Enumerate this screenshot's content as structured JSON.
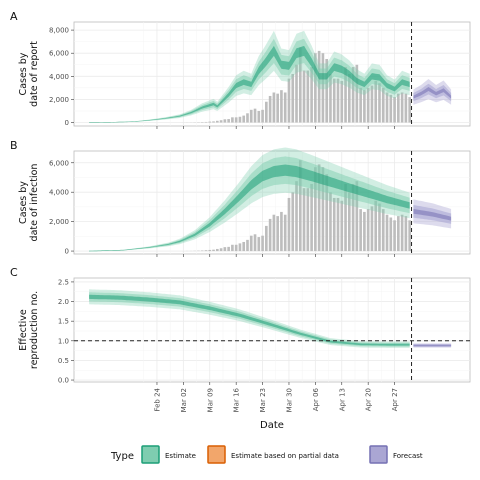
{
  "figure": {
    "xlabel": "Date",
    "legend_title": "Type",
    "legend_position": "bottom"
  },
  "colors": {
    "estimate": "#1b9e77",
    "estimate_fill": "#7fcdb0",
    "partial": "#d95f02",
    "partial_fill": "#f2a66b",
    "forecast": "#7570b3",
    "forecast_fill": "#aaa6d3",
    "bar": "#bdbdbd",
    "grid": "#ebebeb"
  },
  "chart_data": [
    {
      "id": "A",
      "panel_label": "A",
      "type": "bar",
      "ylabel_lines": [
        "Cases by",
        "date of report"
      ],
      "ylim": [
        -300,
        8700
      ],
      "yticks": [
        0,
        2000,
        4000,
        6000,
        8000
      ],
      "ytick_labels": [
        "0",
        "2,000",
        "4,000",
        "6,000",
        "8,000"
      ],
      "bars": [
        4,
        8,
        10,
        18,
        25,
        40,
        50,
        80,
        100,
        150,
        200,
        280,
        300,
        450,
        450,
        500,
        600,
        800,
        1100,
        1200,
        1000,
        1100,
        1800,
        2300,
        2600,
        2500,
        2800,
        2600,
        3800,
        4200,
        5000,
        6500,
        4500,
        4500,
        4800,
        6000,
        6200,
        6000,
        5500,
        4200,
        3800,
        3800,
        3600,
        4800,
        4200,
        4800,
        5000,
        3000,
        2800,
        3000,
        3200,
        3600,
        3400,
        3000,
        2600,
        2400,
        2200,
        2500,
        2600,
        2500,
        2200
      ],
      "estimate_center": [
        {
          "d": -24,
          "v": 0
        },
        {
          "d": -18,
          "v": 20
        },
        {
          "d": -12,
          "v": 80
        },
        {
          "d": -8,
          "v": 200
        },
        {
          "d": -4,
          "v": 350
        },
        {
          "d": 0,
          "v": 550
        },
        {
          "d": 3,
          "v": 850
        },
        {
          "d": 6,
          "v": 1300
        },
        {
          "d": 9,
          "v": 1600
        },
        {
          "d": 10,
          "v": 1400
        },
        {
          "d": 13,
          "v": 2400
        },
        {
          "d": 15,
          "v": 3200
        },
        {
          "d": 17,
          "v": 3500
        },
        {
          "d": 19,
          "v": 3300
        },
        {
          "d": 21,
          "v": 4500
        },
        {
          "d": 23,
          "v": 5300
        },
        {
          "d": 25,
          "v": 6200
        },
        {
          "d": 27,
          "v": 5000
        },
        {
          "d": 29,
          "v": 4900
        },
        {
          "d": 31,
          "v": 6000
        },
        {
          "d": 33,
          "v": 6200
        },
        {
          "d": 35,
          "v": 5200
        },
        {
          "d": 37,
          "v": 4000
        },
        {
          "d": 39,
          "v": 4000
        },
        {
          "d": 41,
          "v": 4800
        },
        {
          "d": 43,
          "v": 4600
        },
        {
          "d": 45,
          "v": 4200
        },
        {
          "d": 47,
          "v": 3600
        },
        {
          "d": 49,
          "v": 3300
        },
        {
          "d": 51,
          "v": 4000
        },
        {
          "d": 53,
          "v": 3900
        },
        {
          "d": 55,
          "v": 3200
        },
        {
          "d": 57,
          "v": 2900
        },
        {
          "d": 59,
          "v": 3500
        },
        {
          "d": 61,
          "v": 3300
        }
      ],
      "forecast_center": [
        {
          "d": 62,
          "v": 2200
        },
        {
          "d": 64,
          "v": 2500
        },
        {
          "d": 66,
          "v": 2900
        },
        {
          "d": 68,
          "v": 2500
        },
        {
          "d": 70,
          "v": 2800
        },
        {
          "d": 72,
          "v": 2200
        }
      ]
    },
    {
      "id": "B",
      "panel_label": "B",
      "type": "bar",
      "ylabel_lines": [
        "Cases by",
        "date of infection"
      ],
      "ylim": [
        -200,
        6800
      ],
      "yticks": [
        0,
        2000,
        4000,
        6000
      ],
      "ytick_labels": [
        "0",
        "2,000",
        "4,000",
        "6,000"
      ],
      "bars": [
        4,
        8,
        10,
        18,
        25,
        40,
        60,
        80,
        100,
        150,
        200,
        280,
        300,
        450,
        450,
        550,
        650,
        800,
        1100,
        1200,
        1000,
        1100,
        1800,
        2300,
        2600,
        2500,
        2800,
        2600,
        3800,
        4200,
        5000,
        6500,
        4500,
        4500,
        4800,
        6000,
        6200,
        6000,
        5500,
        4200,
        3800,
        3800,
        3600,
        4800,
        4200,
        4800,
        5000,
        3000,
        2800,
        3000,
        3200,
        3600,
        3400,
        3000,
        2600,
        2400,
        2200,
        2500,
        2600,
        2500,
        2200
      ],
      "bars_scale": 0.95,
      "estimate_center": [
        {
          "d": -24,
          "v": 0
        },
        {
          "d": -15,
          "v": 60
        },
        {
          "d": -8,
          "v": 250
        },
        {
          "d": -3,
          "v": 450
        },
        {
          "d": 0,
          "v": 650
        },
        {
          "d": 4,
          "v": 1100
        },
        {
          "d": 8,
          "v": 1800
        },
        {
          "d": 12,
          "v": 2700
        },
        {
          "d": 16,
          "v": 3700
        },
        {
          "d": 19,
          "v": 4500
        },
        {
          "d": 22,
          "v": 5100
        },
        {
          "d": 25,
          "v": 5400
        },
        {
          "d": 28,
          "v": 5500
        },
        {
          "d": 31,
          "v": 5400
        },
        {
          "d": 35,
          "v": 5100
        },
        {
          "d": 40,
          "v": 4700
        },
        {
          "d": 45,
          "v": 4300
        },
        {
          "d": 50,
          "v": 3900
        },
        {
          "d": 55,
          "v": 3500
        },
        {
          "d": 61,
          "v": 3100
        }
      ],
      "forecast_center": [
        {
          "d": 62,
          "v": 2700
        },
        {
          "d": 67,
          "v": 2500
        },
        {
          "d": 72,
          "v": 2200
        }
      ]
    },
    {
      "id": "C",
      "panel_label": "C",
      "type": "line",
      "ylabel_lines": [
        "Effective",
        "reproduction no."
      ],
      "ylim": [
        -0.05,
        2.6
      ],
      "yticks": [
        0,
        0.5,
        1.0,
        1.5,
        2.0,
        2.5
      ],
      "ytick_labels": [
        "0.0",
        "0.5",
        "1.0",
        "1.5",
        "2.0",
        "2.5"
      ],
      "reference_line": 1.0,
      "estimate_center": [
        {
          "d": -24,
          "v": 2.12
        },
        {
          "d": -16,
          "v": 2.1
        },
        {
          "d": -8,
          "v": 2.05
        },
        {
          "d": 0,
          "v": 1.98
        },
        {
          "d": 8,
          "v": 1.83
        },
        {
          "d": 16,
          "v": 1.65
        },
        {
          "d": 24,
          "v": 1.42
        },
        {
          "d": 32,
          "v": 1.18
        },
        {
          "d": 40,
          "v": 0.98
        },
        {
          "d": 48,
          "v": 0.91
        },
        {
          "d": 56,
          "v": 0.9
        },
        {
          "d": 61,
          "v": 0.9
        }
      ],
      "forecast_center": [
        {
          "d": 62,
          "v": 0.88
        },
        {
          "d": 72,
          "v": 0.88
        }
      ]
    }
  ],
  "xaxis": {
    "range_days": [
      -28,
      77
    ],
    "cutoff_day": 61,
    "ticks": [
      {
        "d": -6,
        "label": "Feb 24"
      },
      {
        "d": 1,
        "label": "Mar 02"
      },
      {
        "d": 8,
        "label": "Mar 09"
      },
      {
        "d": 15,
        "label": "Mar 16"
      },
      {
        "d": 22,
        "label": "Mar 23"
      },
      {
        "d": 29,
        "label": "Mar 30"
      },
      {
        "d": 36,
        "label": "Apr 06"
      },
      {
        "d": 43,
        "label": "Apr 13"
      },
      {
        "d": 50,
        "label": "Apr 20"
      },
      {
        "d": 57,
        "label": "Apr 27"
      }
    ]
  },
  "legend": {
    "entries": [
      {
        "key": "estimate",
        "label": "Estimate"
      },
      {
        "key": "partial",
        "label": "Estimate based on partial data"
      },
      {
        "key": "forecast",
        "label": "Forecast"
      }
    ]
  }
}
